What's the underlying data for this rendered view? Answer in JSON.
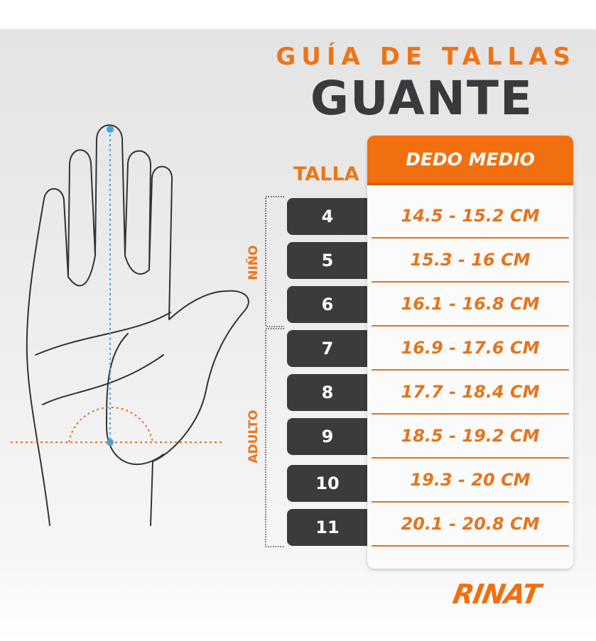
{
  "header": {
    "subtitle": "GUÍA DE TALLAS",
    "title": "GUANTE"
  },
  "table": {
    "size_header": "TALLA",
    "measure_header": "DEDO MEDIO",
    "groups": [
      {
        "label": "NIÑO"
      },
      {
        "label": "ADULTO"
      }
    ],
    "rows": [
      {
        "size": "4",
        "range": "14.5 - 15.2 CM"
      },
      {
        "size": "5",
        "range": "15.3 - 16 CM"
      },
      {
        "size": "6",
        "range": "16.1 - 16.8 CM"
      },
      {
        "size": "7",
        "range": "16.9 - 17.6 CM"
      },
      {
        "size": "8",
        "range": "17.7 - 18.4 CM"
      },
      {
        "size": "9",
        "range": "18.5 - 19.2 CM"
      },
      {
        "size": "10",
        "range": "19.3 - 20 CM"
      },
      {
        "size": "11",
        "range": "20.1 - 20.8 CM"
      }
    ]
  },
  "brand": {
    "logo": "RINAT"
  },
  "colors": {
    "accent": "#f26f0f",
    "dark": "#3b3b3d",
    "measure_line": "#3aa8e0"
  }
}
